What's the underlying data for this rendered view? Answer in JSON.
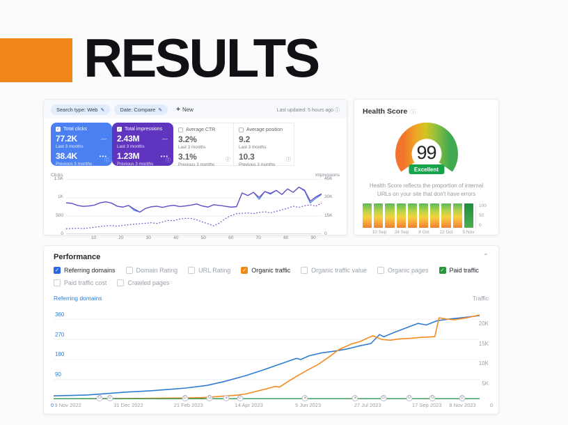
{
  "header": {
    "title": "RESULTS",
    "accent_color": "#f08619"
  },
  "icons": {
    "pencil": "✎",
    "plus": "+",
    "info": "ⓘ",
    "chevron_up": "⌃",
    "check": "✓",
    "solid_line_legend": "—",
    "dotted_line_legend": "•••"
  },
  "gsc": {
    "toolbar": {
      "pills": [
        {
          "label": "Search type: Web"
        },
        {
          "label": "Date: Compare"
        }
      ],
      "new_label": "New",
      "last_updated": "Last updated: 5 hours ago"
    },
    "cards": [
      {
        "label": "Total clicks",
        "selected": true,
        "color": "#4b80f3",
        "value_current": "77.2K",
        "period_current": "Last 3 months",
        "value_previous": "38.4K",
        "period_previous": "Previous 3 months"
      },
      {
        "label": "Total impressions",
        "selected": true,
        "color": "#5f35c0",
        "value_current": "2.43M",
        "period_current": "Last 3 months",
        "value_previous": "1.23M",
        "period_previous": "Previous 3 months"
      },
      {
        "label": "Average CTR",
        "selected": false,
        "value_current": "3.2%",
        "period_current": "Last 3 months",
        "value_previous": "3.1%",
        "period_previous": "Previous 3 months"
      },
      {
        "label": "Average position",
        "selected": false,
        "value_current": "9.2",
        "period_current": "Last 3 months",
        "value_previous": "10.3",
        "period_previous": "Previous 3 months"
      }
    ],
    "chart_data": {
      "type": "line",
      "left_axis": {
        "name": "Clicks",
        "max": 1500,
        "ticks": [
          {
            "v": 1500,
            "label": "1.5K"
          },
          {
            "v": 1000,
            "label": "1K"
          },
          {
            "v": 500,
            "label": "500"
          },
          {
            "v": 0,
            "label": "0"
          }
        ]
      },
      "right_axis": {
        "name": "Impressions",
        "max": 45,
        "ticks": [
          {
            "v": 45,
            "label": "45K"
          },
          {
            "v": 30,
            "label": "30K"
          },
          {
            "v": 15,
            "label": "15K"
          },
          {
            "v": 0,
            "label": "0"
          }
        ]
      },
      "x_ticks": [
        10,
        20,
        30,
        40,
        50,
        60,
        70,
        80,
        90
      ],
      "x_max": 93,
      "grid": [
        1500,
        1000,
        500
      ],
      "series": [
        {
          "name": "Total clicks - last 3 months",
          "axis": "left",
          "color": "#4a82ee",
          "style": "solid",
          "values": [
            850,
            840,
            780,
            755,
            765,
            790,
            855,
            880,
            845,
            760,
            735,
            780,
            645,
            600,
            700,
            745,
            760,
            730,
            765,
            785,
            750,
            765,
            790,
            820,
            765,
            735,
            800,
            780,
            760,
            735,
            745,
            1120,
            1050,
            1140,
            950,
            1160,
            1090,
            1190,
            1080,
            1230,
            1140,
            1280,
            1180,
            850,
            980,
            1080
          ]
        },
        {
          "name": "Total impressions - last 3 months",
          "axis": "right",
          "color": "#6d4cc2",
          "style": "solid",
          "values": [
            25.5,
            25.2,
            23.4,
            22.7,
            23.0,
            23.7,
            25.6,
            26.4,
            25.4,
            22.8,
            22.1,
            23.4,
            20.5,
            18.0,
            21.0,
            22.4,
            22.8,
            21.9,
            23.0,
            23.6,
            22.5,
            23.0,
            23.7,
            24.6,
            23.0,
            22.1,
            24.0,
            23.4,
            22.8,
            22.1,
            22.4,
            33.6,
            31.5,
            34.2,
            30.0,
            34.8,
            33.3,
            35.7,
            32.4,
            36.9,
            34.2,
            38.4,
            36.0,
            27.0,
            30.5,
            33.0
          ]
        },
        {
          "name": "Total clicks - previous 3 months",
          "axis": "left",
          "color": "#4a82ee",
          "style": "dotted",
          "values": [
            145,
            152,
            160,
            150,
            168,
            185,
            205,
            225,
            232,
            215,
            235,
            255,
            270,
            282,
            296,
            310,
            290,
            330,
            372,
            365,
            410,
            430,
            425,
            390,
            330,
            280,
            225,
            300,
            420,
            500,
            555,
            565,
            575,
            560,
            590,
            610,
            580,
            620,
            660,
            700,
            760,
            730,
            770,
            800,
            760,
            845
          ]
        },
        {
          "name": "Total impressions - previous 3 months",
          "axis": "right",
          "color": "#6d4cc2",
          "style": "dotted",
          "values": [
            4.4,
            4.6,
            4.8,
            4.5,
            5.0,
            5.6,
            6.2,
            6.8,
            7.0,
            6.5,
            7.1,
            7.7,
            8.1,
            8.5,
            8.9,
            9.3,
            8.7,
            9.9,
            11.2,
            11.0,
            12.3,
            12.9,
            12.8,
            11.7,
            9.9,
            8.4,
            6.8,
            9.0,
            12.6,
            15.0,
            16.7,
            17.0,
            17.3,
            16.8,
            17.7,
            18.3,
            17.4,
            18.6,
            19.8,
            21.0,
            22.8,
            21.9,
            23.1,
            24.0,
            22.8,
            25.4
          ]
        }
      ]
    }
  },
  "health": {
    "title": "Health Score",
    "score": "99",
    "rating": "Excellent",
    "badge_color": "#17a34a",
    "description": "Health Score reflects the proportion of internal URLs on your site that don't have errors",
    "gauge_colors": [
      "#F2732B",
      "#EFA326",
      "#D6C321",
      "#97C13C",
      "#3FA94F"
    ],
    "chart_data": {
      "type": "bar",
      "values": [
        100,
        100,
        100,
        100,
        100,
        100,
        100,
        100,
        100,
        100
      ],
      "highlight_last": true,
      "y_ticks": [
        "100",
        "50",
        "0"
      ],
      "x_labels": [
        "10 Sep",
        "24 Sep",
        "8 Oct",
        "22 Oct",
        "5 Nov"
      ]
    }
  },
  "performance": {
    "title": "Performance",
    "filters": [
      {
        "label": "Referring domains",
        "checked": true,
        "color": "#2769e0"
      },
      {
        "label": "Domain Rating",
        "checked": false
      },
      {
        "label": "URL Rating",
        "checked": false
      },
      {
        "label": "Organic traffic",
        "checked": true,
        "color": "#f2880f"
      },
      {
        "label": "Organic traffic value",
        "checked": false
      },
      {
        "label": "Organic pages",
        "checked": false
      },
      {
        "label": "Paid traffic",
        "checked": true,
        "color": "#27963c"
      },
      {
        "label": "Paid traffic cost",
        "checked": false
      },
      {
        "label": "Crawled pages",
        "checked": false
      }
    ],
    "chart_data": {
      "type": "line",
      "left_axis": {
        "name": "Referring domains",
        "color": "#2d7cd4",
        "max": 425,
        "zero": "0",
        "ticks": [
          {
            "v": 360,
            "label": "360"
          },
          {
            "v": 270,
            "label": "270"
          },
          {
            "v": 180,
            "label": "180"
          },
          {
            "v": 90,
            "label": "90"
          }
        ]
      },
      "right_axis": {
        "name": "Traffic",
        "color": "#9aa0a6",
        "zero": "0",
        "k_to_left": 18,
        "ticks": [
          {
            "v": 20,
            "label": "20K"
          },
          {
            "v": 15,
            "label": "15K"
          },
          {
            "v": 10,
            "label": "10K"
          },
          {
            "v": 5,
            "label": "5K"
          }
        ]
      },
      "grid": [
        360,
        270,
        180,
        90
      ],
      "x_labels": [
        {
          "label": "9 Nov 2022",
          "pct": 3.3
        },
        {
          "label": "31 Dec 2022",
          "pct": 17.2
        },
        {
          "label": "21 Feb 2023",
          "pct": 31.0
        },
        {
          "label": "14 Apr 2023",
          "pct": 44.9
        },
        {
          "label": "5 Jun 2023",
          "pct": 58.5
        },
        {
          "label": "27 Jul 2023",
          "pct": 72.2
        },
        {
          "label": "17 Sep 2023",
          "pct": 85.8
        },
        {
          "label": "8 Nov 2023",
          "pct": 94.0
        }
      ],
      "series": [
        {
          "name": "Referring domains",
          "axis": "left",
          "color": "#2d7cd4",
          "points": [
            [
              0,
              15
            ],
            [
              0.08,
              19
            ],
            [
              0.17,
              32
            ],
            [
              0.23,
              38
            ],
            [
              0.31,
              50
            ],
            [
              0.36,
              62
            ],
            [
              0.4,
              79
            ],
            [
              0.45,
              105
            ],
            [
              0.49,
              130
            ],
            [
              0.52,
              150
            ],
            [
              0.55,
              170
            ],
            [
              0.57,
              183
            ],
            [
              0.58,
              178
            ],
            [
              0.6,
              195
            ],
            [
              0.63,
              208
            ],
            [
              0.66,
              216
            ],
            [
              0.69,
              226
            ],
            [
              0.72,
              240
            ],
            [
              0.745,
              250
            ],
            [
              0.765,
              290
            ],
            [
              0.775,
              280
            ],
            [
              0.8,
              300
            ],
            [
              0.83,
              322
            ],
            [
              0.855,
              340
            ],
            [
              0.875,
              333
            ],
            [
              0.9,
              352
            ],
            [
              0.93,
              360
            ],
            [
              0.96,
              366
            ],
            [
              1,
              375
            ]
          ]
        },
        {
          "name": "Organic traffic",
          "axis": "right",
          "color": "#f68b1f",
          "points": [
            [
              0,
              0.1
            ],
            [
              0.1,
              0.15
            ],
            [
              0.2,
              0.2
            ],
            [
              0.3,
              0.3
            ],
            [
              0.35,
              0.4
            ],
            [
              0.4,
              0.8
            ],
            [
              0.43,
              1.0
            ],
            [
              0.45,
              1.3
            ],
            [
              0.47,
              1.8
            ],
            [
              0.5,
              2.6
            ],
            [
              0.52,
              3.2
            ],
            [
              0.53,
              3.0
            ],
            [
              0.55,
              4.4
            ],
            [
              0.575,
              6.0
            ],
            [
              0.6,
              7.5
            ],
            [
              0.62,
              8.6
            ],
            [
              0.65,
              10.8
            ],
            [
              0.67,
              12.4
            ],
            [
              0.7,
              13.8
            ],
            [
              0.72,
              14.4
            ],
            [
              0.74,
              15.4
            ],
            [
              0.75,
              15.8
            ],
            [
              0.77,
              14.9
            ],
            [
              0.79,
              14.7
            ],
            [
              0.81,
              15.0
            ],
            [
              0.84,
              15.2
            ],
            [
              0.86,
              15.4
            ],
            [
              0.88,
              15.5
            ],
            [
              0.895,
              15.6
            ],
            [
              0.9,
              18.0
            ],
            [
              0.905,
              20.3
            ],
            [
              0.92,
              20.0
            ],
            [
              0.94,
              19.8
            ],
            [
              0.97,
              20.3
            ],
            [
              1,
              21.0
            ]
          ]
        },
        {
          "name": "Paid traffic",
          "axis": "right",
          "color": "#3e9e5c",
          "points": [
            [
              0,
              0.12
            ],
            [
              1,
              0.12
            ]
          ]
        }
      ],
      "annotations": [
        {
          "letter": "G",
          "pct": 10.6
        },
        {
          "letter": "G",
          "pct": 12.9
        },
        {
          "letter": "G",
          "pct": 30.2
        },
        {
          "letter": "G",
          "pct": 35.9
        },
        {
          "letter": "a",
          "pct": 39.7
        },
        {
          "letter": "G",
          "pct": 42.8
        },
        {
          "letter": "a",
          "pct": 57.8
        },
        {
          "letter": "a",
          "pct": 69.3
        },
        {
          "letter": "G",
          "pct": 75.8
        },
        {
          "letter": "G",
          "pct": 81.8
        },
        {
          "letter": "G",
          "pct": 87.1
        },
        {
          "letter": "G",
          "pct": 93.9
        }
      ]
    }
  }
}
